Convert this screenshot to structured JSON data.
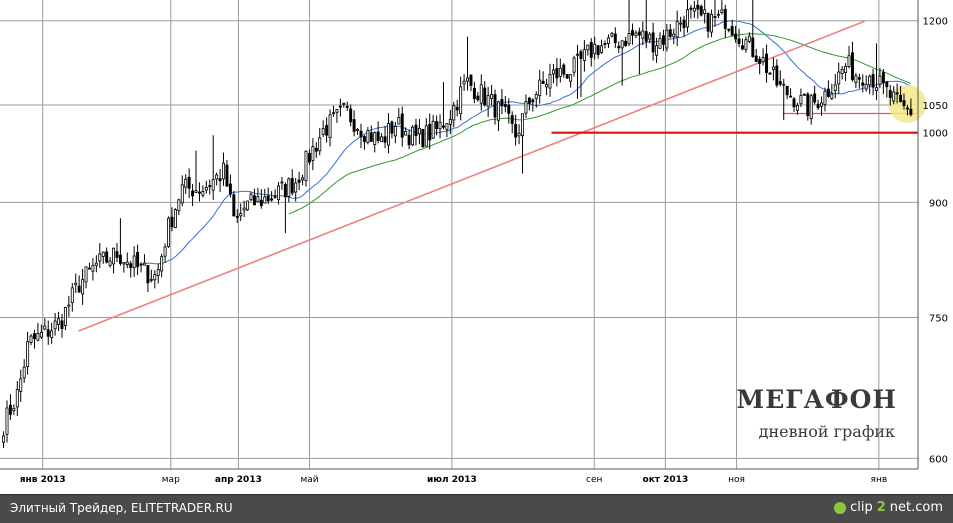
{
  "chart_data": {
    "type": "candlestick",
    "title": "МЕГАФОН",
    "subtitle": "дневной график",
    "y_ticks": [
      600,
      750,
      900,
      1050,
      1200
    ],
    "y_extra_label": "1000",
    "ylim": [
      590,
      1240
    ],
    "x_ticks": [
      {
        "label": "янв 2013",
        "major": true
      },
      {
        "label": "мар",
        "major": false
      },
      {
        "label": "апр 2013",
        "major": true
      },
      {
        "label": "май",
        "major": false
      },
      {
        "label": "июл 2013",
        "major": true
      },
      {
        "label": "сен",
        "major": false
      },
      {
        "label": "окт 2013",
        "major": true
      },
      {
        "label": "ноя",
        "major": false
      },
      {
        "label": "янв",
        "major": false
      }
    ],
    "x_tick_months": [
      0.25,
      2.05,
      3.0,
      4.0,
      6.0,
      8.0,
      9.0,
      10.0,
      12.0
    ],
    "month_range": [
      -0.35,
      12.55
    ],
    "anchors": [
      [
        -0.35,
        625
      ],
      [
        -0.1,
        665
      ],
      [
        0.05,
        720
      ],
      [
        0.25,
        730
      ],
      [
        0.5,
        745
      ],
      [
        0.75,
        790
      ],
      [
        1.0,
        815
      ],
      [
        1.3,
        830
      ],
      [
        1.6,
        810
      ],
      [
        1.85,
        800
      ],
      [
        2.0,
        860
      ],
      [
        2.2,
        920
      ],
      [
        2.5,
        920
      ],
      [
        2.8,
        945
      ],
      [
        2.95,
        870
      ],
      [
        3.1,
        895
      ],
      [
        3.5,
        910
      ],
      [
        3.8,
        930
      ],
      [
        4.2,
        1010
      ],
      [
        4.5,
        1040
      ],
      [
        4.75,
        1010
      ],
      [
        5.0,
        990
      ],
      [
        5.2,
        1020
      ],
      [
        5.5,
        995
      ],
      [
        5.8,
        1010
      ],
      [
        6.0,
        1040
      ],
      [
        6.2,
        1090
      ],
      [
        6.5,
        1060
      ],
      [
        6.75,
        1030
      ],
      [
        6.9,
        1000
      ],
      [
        7.1,
        1060
      ],
      [
        7.4,
        1100
      ],
      [
        7.7,
        1110
      ],
      [
        8.0,
        1150
      ],
      [
        8.3,
        1160
      ],
      [
        8.6,
        1175
      ],
      [
        8.85,
        1160
      ],
      [
        9.0,
        1170
      ],
      [
        9.3,
        1210
      ],
      [
        9.6,
        1200
      ],
      [
        9.85,
        1205
      ],
      [
        10.0,
        1180
      ],
      [
        10.2,
        1150
      ],
      [
        10.35,
        1130
      ],
      [
        10.6,
        1080
      ],
      [
        10.85,
        1060
      ],
      [
        11.0,
        1045
      ],
      [
        11.25,
        1070
      ],
      [
        11.55,
        1120
      ],
      [
        11.7,
        1100
      ],
      [
        11.85,
        1105
      ],
      [
        12.0,
        1085
      ],
      [
        12.2,
        1060
      ],
      [
        12.3,
        1045
      ],
      [
        12.45,
        1040
      ]
    ],
    "ma_short_start_month": 1.6,
    "ma_long_start_month": 3.7,
    "trendline": {
      "from": [
        0.75,
        734
      ],
      "to": [
        11.8,
        1199
      ]
    },
    "support_short": {
      "from": [
        10.65,
        1036
      ],
      "to": [
        12.55,
        1036
      ]
    },
    "support_long": {
      "from": [
        7.4,
        1005
      ],
      "to": [
        12.55,
        1005
      ]
    },
    "highlight_month": 12.4,
    "highlight_value": 1052,
    "colors": {
      "candle": "#000000",
      "ma_short": "#3a6fd8",
      "ma_long": "#2e9a2e",
      "trendline": "#f08080",
      "support_short": "#f05050",
      "support_long": "#dd1111",
      "highlight": "#f3e98a",
      "grid": "#9a9a9a"
    }
  },
  "footer": {
    "left": "Элитный Трейдер, ELITETRADER.RU",
    "brand_prefix": "clip",
    "brand_digit": "2",
    "brand_suffix": "net.com"
  }
}
